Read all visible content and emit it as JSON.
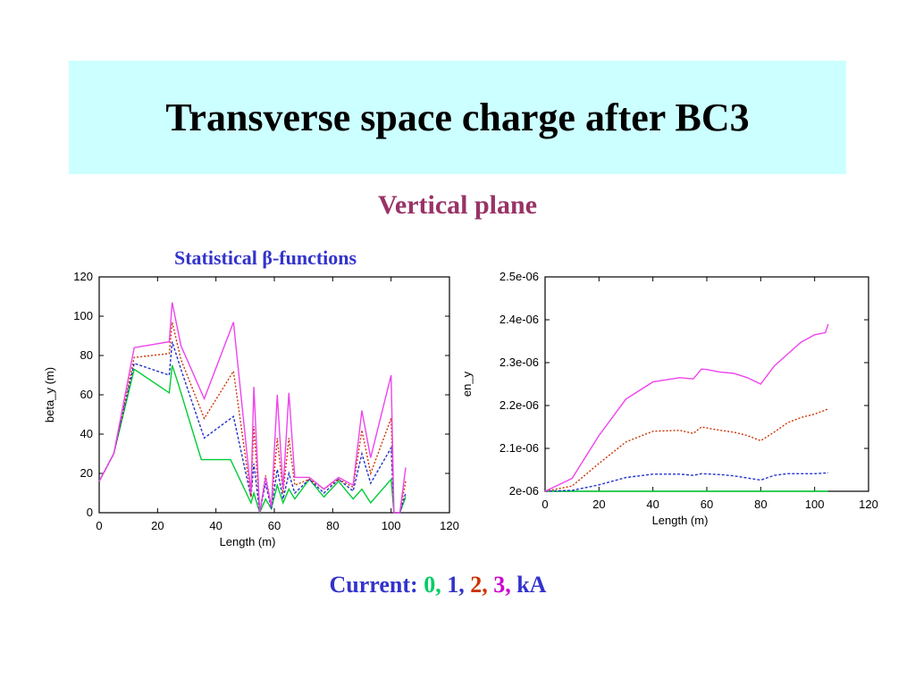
{
  "slide": {
    "title": "Transverse space charge after BC3",
    "subtitle": "Vertical plane",
    "caption": "Statistical  β-functions",
    "legend": {
      "prefix": "Current:",
      "items": [
        {
          "text": "0",
          "color": "#00cc66"
        },
        {
          "text": "1",
          "color": "#3333cc"
        },
        {
          "text": "2",
          "color": "#cc3300"
        },
        {
          "text": "3",
          "color": "#cc00cc"
        }
      ],
      "unit": "kA"
    }
  },
  "chart_data": [
    {
      "type": "line",
      "xlabel": "Length (m)",
      "ylabel": "beta_y (m)",
      "xlim": [
        0,
        120
      ],
      "ylim": [
        0,
        120
      ],
      "xticks": [
        "0",
        "20",
        "40",
        "60",
        "80",
        "100",
        "120"
      ],
      "yticks": [
        "0",
        "20",
        "40",
        "60",
        "80",
        "100",
        "120"
      ],
      "grid": false,
      "series": [
        {
          "color": "#00cc33",
          "dash": "none",
          "x": [
            0,
            5,
            12,
            24,
            25,
            27,
            35,
            45,
            52,
            53,
            55,
            57,
            59,
            61,
            63,
            65,
            67,
            72,
            77,
            82,
            87,
            90,
            93,
            100,
            101,
            103,
            105
          ],
          "y": [
            16,
            30,
            73,
            61,
            75,
            66,
            27,
            27,
            5,
            10,
            0,
            7,
            2,
            14,
            5,
            12,
            7,
            17,
            8,
            16,
            7,
            12,
            5,
            17,
            0,
            0,
            8
          ]
        },
        {
          "color": "#2233cc",
          "dash": "3,2",
          "x": [
            0,
            5,
            12,
            24,
            25,
            28,
            36,
            46,
            52,
            53,
            55,
            57,
            59,
            61,
            63,
            65,
            67,
            72,
            77,
            82,
            87,
            90,
            93,
            100,
            101,
            103,
            105
          ],
          "y": [
            16,
            30,
            76,
            70,
            87,
            73,
            38,
            49,
            8,
            25,
            0,
            15,
            2,
            22,
            7,
            20,
            10,
            17,
            10,
            17,
            11,
            30,
            15,
            33,
            0,
            0,
            10
          ]
        },
        {
          "color": "#cc3300",
          "dash": "2,2",
          "x": [
            0,
            5,
            12,
            24,
            25,
            28,
            36,
            46,
            52,
            53,
            55,
            57,
            59,
            61,
            63,
            65,
            67,
            72,
            77,
            82,
            87,
            90,
            93,
            100,
            101,
            103,
            105
          ],
          "y": [
            16,
            30,
            79,
            81,
            97,
            78,
            48,
            72,
            8,
            44,
            0,
            19,
            3,
            38,
            10,
            38,
            14,
            17,
            12,
            17,
            13,
            42,
            20,
            48,
            0,
            0,
            16
          ]
        },
        {
          "color": "#ee44ee",
          "dash": "none",
          "x": [
            0,
            5,
            12,
            24,
            25,
            28,
            36,
            46,
            52,
            53,
            55,
            57,
            59,
            61,
            63,
            65,
            67,
            72,
            77,
            82,
            87,
            90,
            93,
            100,
            101,
            103,
            105
          ],
          "y": [
            16,
            30,
            84,
            87,
            107,
            85,
            58,
            97,
            10,
            64,
            0,
            18,
            3,
            60,
            12,
            61,
            18,
            18,
            12,
            18,
            14,
            52,
            28,
            70,
            0,
            0,
            23
          ]
        }
      ]
    },
    {
      "type": "line",
      "xlabel": "Length (m)",
      "ylabel": "en_y",
      "xlim": [
        0,
        120
      ],
      "ylim": [
        2e-06,
        2.5e-06
      ],
      "xticks": [
        "0",
        "20",
        "40",
        "60",
        "80",
        "100",
        "120"
      ],
      "yticks": [
        "2e-06",
        "2.1e-06",
        "2.2e-06",
        "2.3e-06",
        "2.4e-06",
        "2.5e-06"
      ],
      "grid": false,
      "series": [
        {
          "color": "#00cc33",
          "dash": "none",
          "x": [
            0,
            105
          ],
          "y": [
            2e-06,
            2e-06
          ]
        },
        {
          "color": "#2233cc",
          "dash": "3,2",
          "x": [
            0,
            10,
            20,
            30,
            40,
            50,
            55,
            58,
            65,
            70,
            75,
            80,
            85,
            90,
            95,
            100,
            105
          ],
          "y": [
            2e-06,
            2.002e-06,
            2.015e-06,
            2.032e-06,
            2.04e-06,
            2.04e-06,
            2.037e-06,
            2.041e-06,
            2.039e-06,
            2.036e-06,
            2.031e-06,
            2.026e-06,
            2.037e-06,
            2.041e-06,
            2.041e-06,
            2.041e-06,
            2.043e-06
          ]
        },
        {
          "color": "#cc3300",
          "dash": "2,2",
          "x": [
            0,
            10,
            20,
            30,
            40,
            50,
            55,
            58,
            65,
            70,
            75,
            80,
            85,
            90,
            95,
            100,
            105
          ],
          "y": [
            2e-06,
            2.012e-06,
            2.065e-06,
            2.115e-06,
            2.14e-06,
            2.142e-06,
            2.135e-06,
            2.15e-06,
            2.142e-06,
            2.138e-06,
            2.13e-06,
            2.118e-06,
            2.138e-06,
            2.16e-06,
            2.172e-06,
            2.18e-06,
            2.192e-06
          ]
        },
        {
          "color": "#ee44ee",
          "dash": "none",
          "x": [
            0,
            10,
            20,
            30,
            40,
            50,
            55,
            58,
            60,
            65,
            70,
            75,
            80,
            85,
            90,
            95,
            100,
            104,
            105
          ],
          "y": [
            2e-06,
            2.03e-06,
            2.13e-06,
            2.215e-06,
            2.255e-06,
            2.265e-06,
            2.262e-06,
            2.285e-06,
            2.284e-06,
            2.278e-06,
            2.275e-06,
            2.265e-06,
            2.25e-06,
            2.292e-06,
            2.32e-06,
            2.348e-06,
            2.365e-06,
            2.37e-06,
            2.39e-06
          ]
        }
      ]
    }
  ]
}
